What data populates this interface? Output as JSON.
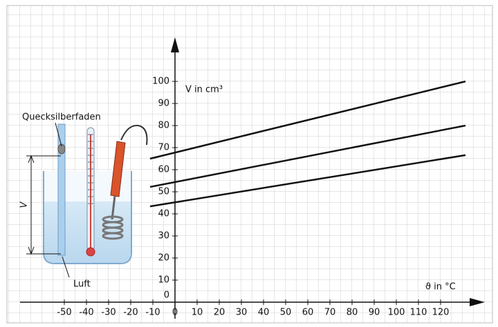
{
  "chart_data": {
    "type": "line",
    "x_label": "ϑ in °C",
    "y_label": "V in cm³",
    "x": [
      -11.25,
      131.25
    ],
    "series": [
      {
        "color": "#111111",
        "values": [
          65,
          100
        ]
      },
      {
        "color": "#111111",
        "values": [
          52.2,
          80
        ]
      },
      {
        "color": "#111111",
        "values": [
          43.4,
          66.6
        ]
      }
    ],
    "xlim": [
      -70,
      140
    ],
    "ylim": [
      0,
      120
    ],
    "xticks": [
      -50,
      -40,
      -30,
      -20,
      -10,
      0,
      10,
      20,
      30,
      40,
      50,
      60,
      70,
      80,
      90,
      100,
      110,
      120
    ],
    "yticks": [
      0,
      10,
      20,
      30,
      40,
      50,
      60,
      70,
      80,
      90,
      100
    ],
    "grid": true,
    "annotations": [
      "Quecksilberfaden",
      "V",
      "Luft"
    ]
  }
}
